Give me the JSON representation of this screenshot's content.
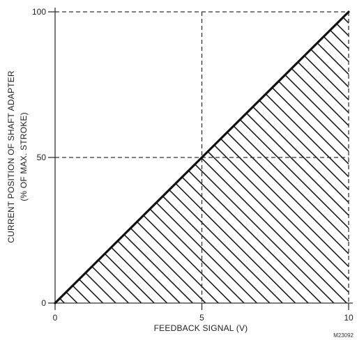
{
  "chart_data": {
    "type": "area",
    "title": "",
    "xlabel": "FEEDBACK SIGNAL (V)",
    "ylabel_line1": "CURRENT POSITION OF SHAFT ADAPTER",
    "ylabel_line2": "(% OF MAX. STROKE)",
    "xlim": [
      0,
      10
    ],
    "ylim": [
      0,
      100
    ],
    "x_ticks": [
      {
        "value": 0,
        "label": "0"
      },
      {
        "value": 5,
        "label": "5"
      },
      {
        "value": 10,
        "label": "10"
      }
    ],
    "y_ticks": [
      {
        "value": 0,
        "label": "0"
      },
      {
        "value": 50,
        "label": "50"
      },
      {
        "value": 100,
        "label": "100"
      }
    ],
    "series": [
      {
        "x": [
          0,
          10
        ],
        "y": [
          0,
          100
        ],
        "fill": "hatched region below the line"
      }
    ],
    "reference_lines": [
      {
        "orientation": "horizontal",
        "value": 100,
        "style": "dashed"
      },
      {
        "orientation": "horizontal",
        "value": 50,
        "style": "dashed"
      },
      {
        "orientation": "vertical",
        "value": 5,
        "style": "dashed"
      },
      {
        "orientation": "vertical",
        "value": 10,
        "style": "dashed"
      }
    ],
    "annotation": "M23092",
    "grid": false,
    "colors": {
      "line": "#111111",
      "hatch": "#1a1a1a",
      "dashed": "#333333",
      "axis": "#333333"
    }
  }
}
